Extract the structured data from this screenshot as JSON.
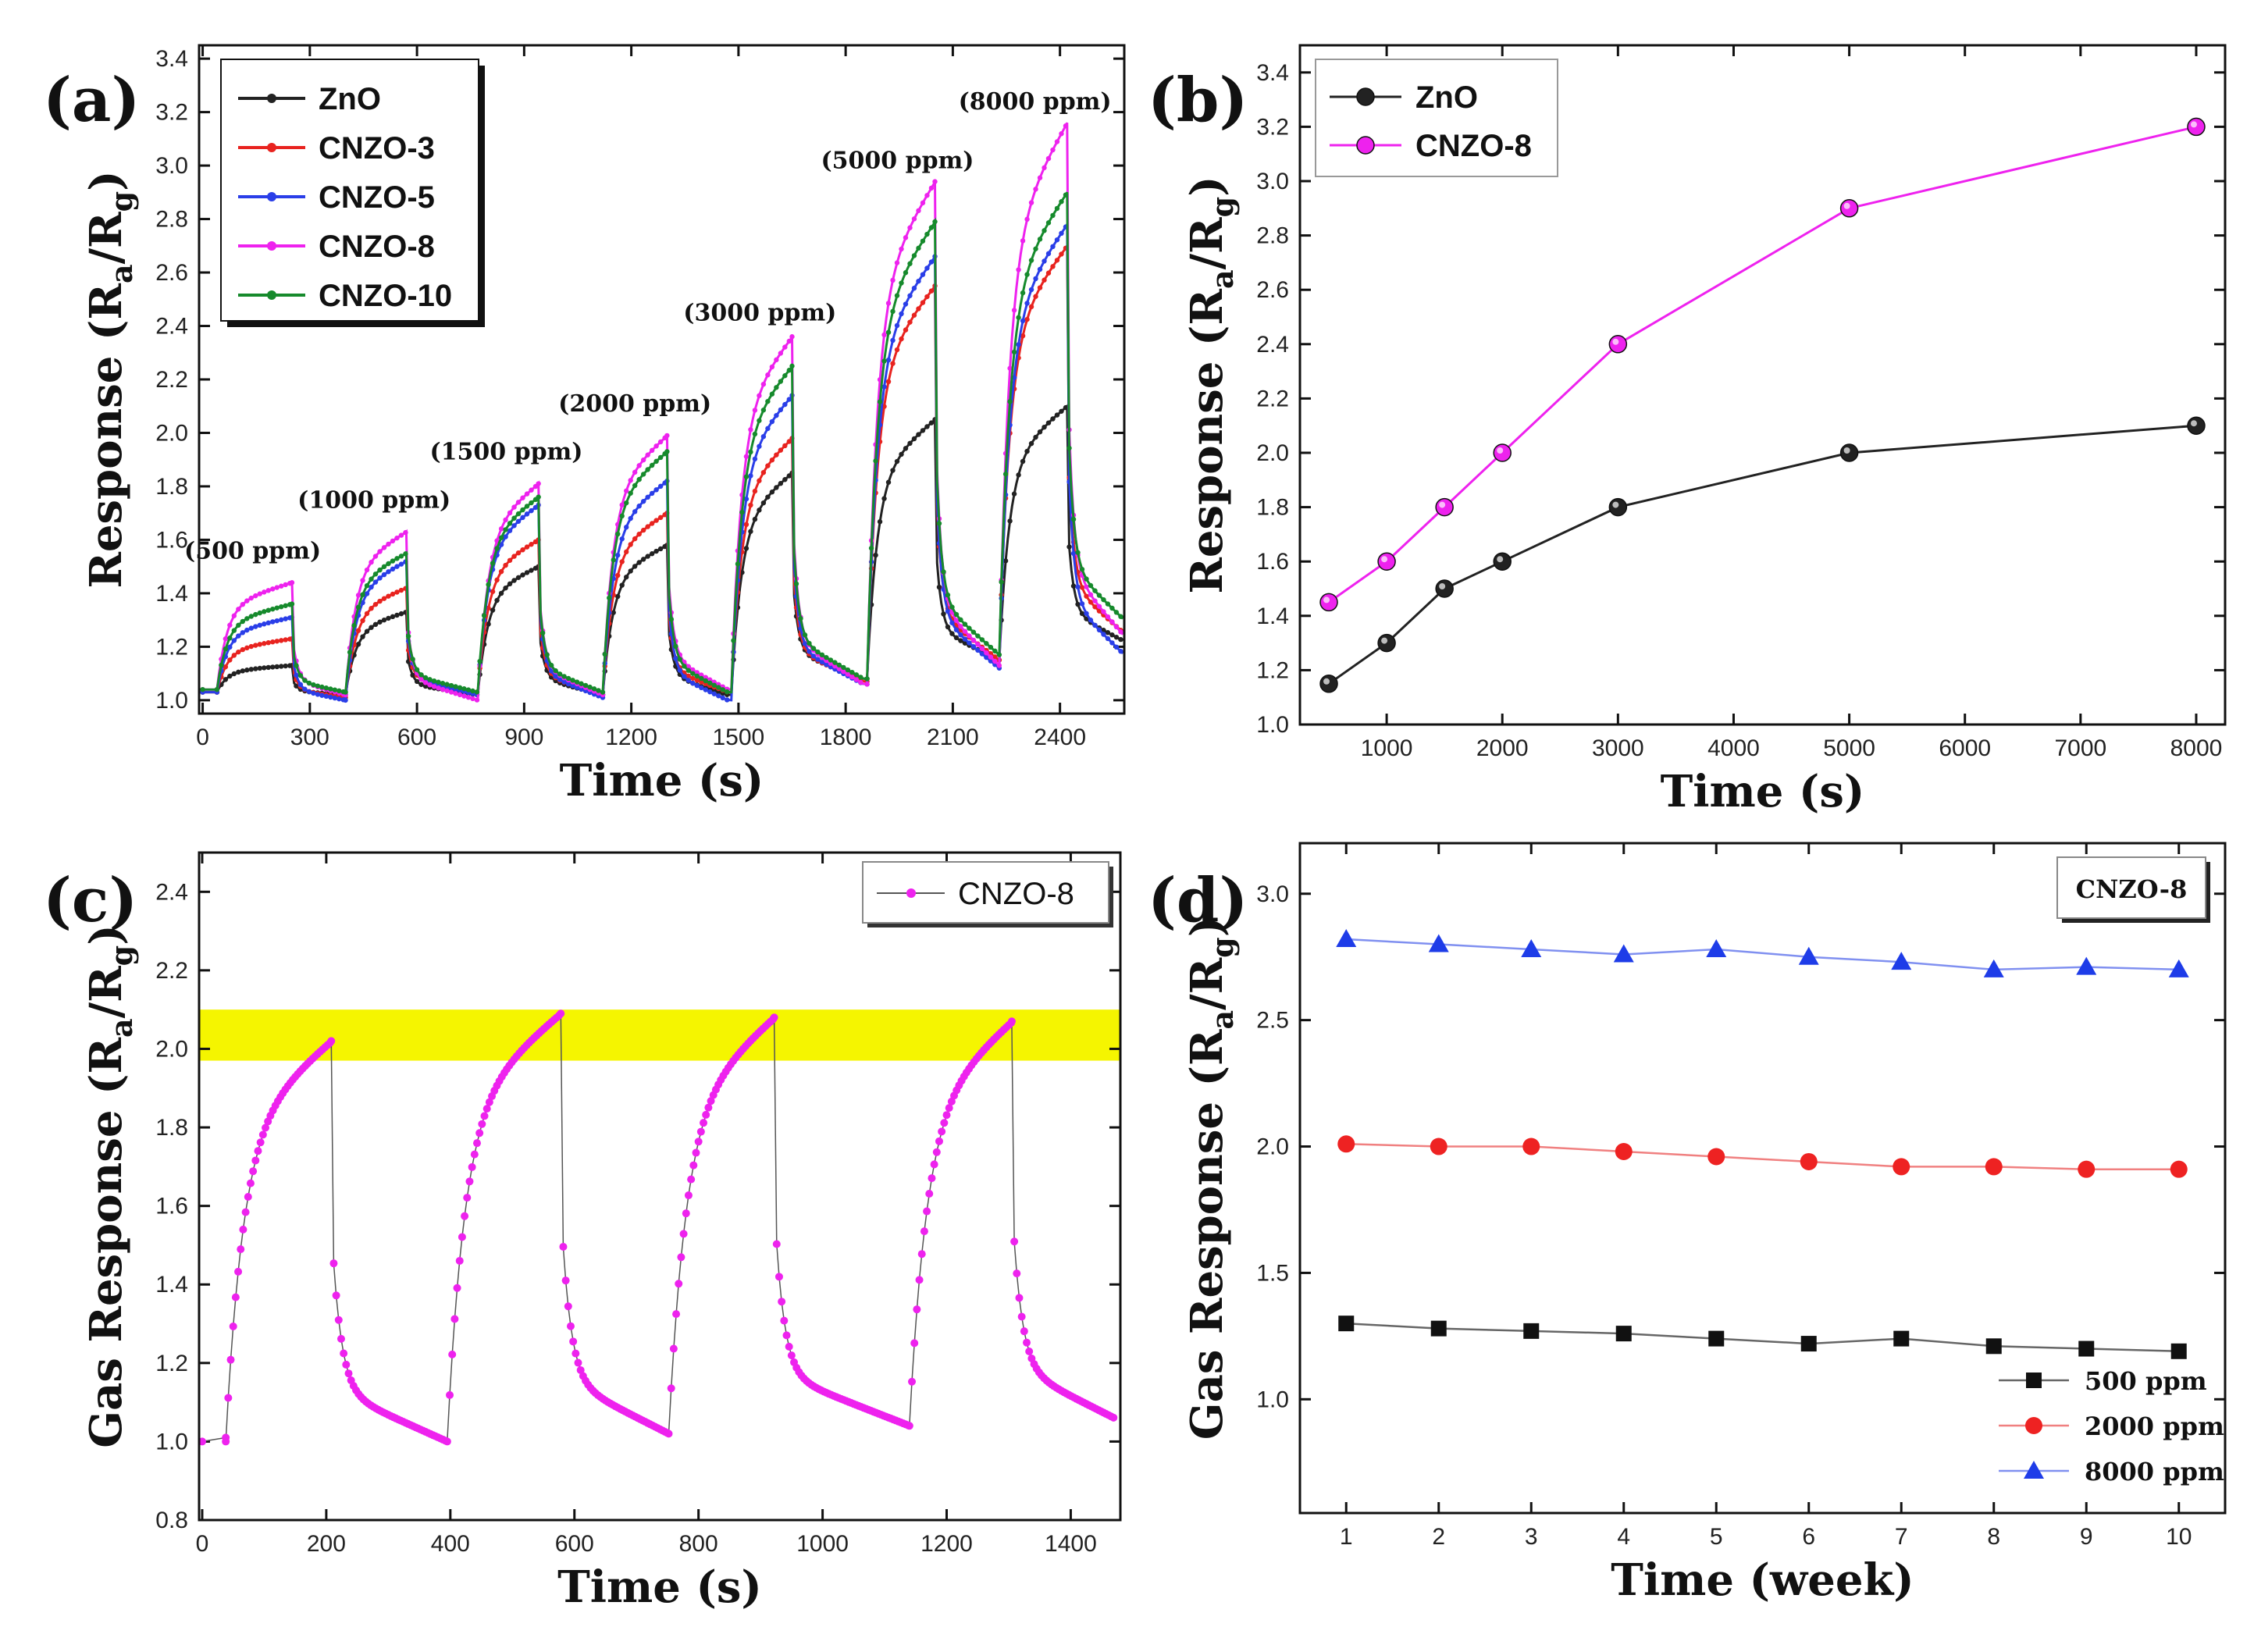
{
  "chart_data": [
    {
      "id": "a",
      "panel_label": "(a)",
      "type": "line",
      "xlabel": "Time (s)",
      "ylabel": "Response (R",
      "ylabel_sub1": "a",
      "ylabel_mid": "/R",
      "ylabel_sub2": "g",
      "ylabel_end": ")",
      "xlim": [
        -10,
        2580
      ],
      "ylim": [
        0.95,
        3.45
      ],
      "xticks": [
        "0",
        "300",
        "600",
        "900",
        "1200",
        "1500",
        "1800",
        "2100",
        "2400"
      ],
      "xtick_values": [
        0,
        300,
        600,
        900,
        1200,
        1500,
        1800,
        2100,
        2400
      ],
      "yticks": [
        "1.0",
        "1.2",
        "1.4",
        "1.6",
        "1.8",
        "2.0",
        "2.2",
        "2.4",
        "2.6",
        "2.8",
        "3.0",
        "3.2",
        "3.4"
      ],
      "ytick_values": [
        1.0,
        1.2,
        1.4,
        1.6,
        1.8,
        2.0,
        2.2,
        2.4,
        2.6,
        2.8,
        3.0,
        3.2,
        3.4
      ],
      "cycles": [
        {
          "on": 40,
          "off": 250,
          "next": 400
        },
        {
          "on": 400,
          "off": 570,
          "next": 770
        },
        {
          "on": 770,
          "off": 940,
          "next": 1120
        },
        {
          "on": 1120,
          "off": 1300,
          "next": 1470
        },
        {
          "on": 1480,
          "off": 1650,
          "next": 1850
        },
        {
          "on": 1860,
          "off": 2050,
          "next": 2230
        },
        {
          "on": 2230,
          "off": 2420,
          "next": 2580
        }
      ],
      "annotations": [
        {
          "text": "(500 ppm)",
          "x": 140,
          "y": 1.53
        },
        {
          "text": "(1000 ppm)",
          "x": 480,
          "y": 1.72
        },
        {
          "text": "(1500 ppm)",
          "x": 850,
          "y": 1.9
        },
        {
          "text": "(2000 ppm)",
          "x": 1210,
          "y": 2.08
        },
        {
          "text": "(3000 ppm)",
          "x": 1560,
          "y": 2.42
        },
        {
          "text": "(5000 ppm)",
          "x": 1945,
          "y": 2.99
        },
        {
          "text": "(8000 ppm)",
          "x": 2330,
          "y": 3.21
        }
      ],
      "series": [
        {
          "name": "ZnO",
          "color": "#222222",
          "baseline": 1.03,
          "peaks": [
            1.13,
            1.33,
            1.5,
            1.58,
            1.85,
            2.05,
            2.1
          ],
          "ends": [
            1.02,
            1.02,
            1.02,
            1.02,
            1.08,
            1.15,
            1.22
          ]
        },
        {
          "name": "CNZO-3",
          "color": "#e8231f",
          "baseline": 1.03,
          "peaks": [
            1.23,
            1.42,
            1.6,
            1.7,
            1.98,
            2.55,
            2.7
          ],
          "ends": [
            1.01,
            1.03,
            1.02,
            1.03,
            1.07,
            1.15,
            1.25
          ]
        },
        {
          "name": "CNZO-5",
          "color": "#2a3ee8",
          "baseline": 1.03,
          "peaks": [
            1.31,
            1.52,
            1.73,
            1.82,
            2.14,
            2.66,
            2.78
          ],
          "ends": [
            1.0,
            1.02,
            1.01,
            1.0,
            1.06,
            1.12,
            1.17
          ]
        },
        {
          "name": "CNZO-8",
          "color": "#ee22ee",
          "baseline": 1.04,
          "peaks": [
            1.44,
            1.63,
            1.81,
            1.99,
            2.36,
            2.94,
            3.16
          ],
          "ends": [
            1.02,
            1.0,
            1.02,
            1.04,
            1.06,
            1.13,
            1.24
          ]
        },
        {
          "name": "CNZO-10",
          "color": "#168a2c",
          "baseline": 1.04,
          "peaks": [
            1.36,
            1.55,
            1.76,
            1.93,
            2.25,
            2.79,
            2.9
          ],
          "ends": [
            1.03,
            1.03,
            1.03,
            1.03,
            1.08,
            1.17,
            1.3
          ]
        }
      ]
    },
    {
      "id": "b",
      "panel_label": "(b)",
      "type": "line",
      "xlabel": "Time (s)",
      "ylabel": "Response (R",
      "ylabel_sub1": "a",
      "ylabel_mid": "/R",
      "ylabel_sub2": "g",
      "ylabel_end": ")",
      "xlim": [
        250,
        8250
      ],
      "ylim": [
        1.0,
        3.5
      ],
      "xticks": [
        "1000",
        "2000",
        "3000",
        "4000",
        "5000",
        "6000",
        "7000",
        "8000"
      ],
      "xtick_values": [
        1000,
        2000,
        3000,
        4000,
        5000,
        6000,
        7000,
        8000
      ],
      "yticks": [
        "1.0",
        "1.2",
        "1.4",
        "1.6",
        "1.8",
        "2.0",
        "2.2",
        "2.4",
        "2.6",
        "2.8",
        "3.0",
        "3.2",
        "3.4"
      ],
      "ytick_values": [
        1.0,
        1.2,
        1.4,
        1.6,
        1.8,
        2.0,
        2.2,
        2.4,
        2.6,
        2.8,
        3.0,
        3.2,
        3.4
      ],
      "x": [
        500,
        1000,
        1500,
        2000,
        3000,
        5000,
        8000
      ],
      "series": [
        {
          "name": "ZnO",
          "color": "#222222",
          "values": [
            1.15,
            1.3,
            1.5,
            1.6,
            1.8,
            2.0,
            2.1
          ]
        },
        {
          "name": "CNZO-8",
          "color": "#ee22ee",
          "values": [
            1.45,
            1.6,
            1.8,
            2.0,
            2.4,
            2.9,
            3.2
          ]
        }
      ]
    },
    {
      "id": "c",
      "panel_label": "(c)",
      "type": "line",
      "xlabel": "Time (s)",
      "ylabel": "Gas Response (R",
      "ylabel_sub1": "a",
      "ylabel_mid": "/R",
      "ylabel_sub2": "g",
      "ylabel_end": ")",
      "xlim": [
        -5,
        1480
      ],
      "ylim": [
        0.8,
        2.5
      ],
      "xticks": [
        "0",
        "200",
        "400",
        "600",
        "800",
        "1000",
        "1200",
        "1400"
      ],
      "xtick_values": [
        0,
        200,
        400,
        600,
        800,
        1000,
        1200,
        1400
      ],
      "yticks": [
        "0.8",
        "1.0",
        "1.2",
        "1.4",
        "1.6",
        "1.8",
        "2.0",
        "2.2",
        "2.4"
      ],
      "ytick_values": [
        0.8,
        1.0,
        1.2,
        1.4,
        1.6,
        1.8,
        2.0,
        2.2,
        2.4
      ],
      "highlight_band": [
        1.97,
        2.1
      ],
      "highlight_color": "#f5f500",
      "cycles": [
        {
          "on": 38,
          "off": 208,
          "next": 395,
          "peak": 2.02,
          "end": 1.0
        },
        {
          "on": 395,
          "off": 578,
          "next": 752,
          "peak": 2.09,
          "end": 1.02
        },
        {
          "on": 752,
          "off": 922,
          "next": 1140,
          "peak": 2.08,
          "end": 1.04
        },
        {
          "on": 1140,
          "off": 1305,
          "next": 1470,
          "peak": 2.07,
          "end": 1.06
        }
      ],
      "series": [
        {
          "name": "CNZO-8",
          "color": "#ee22ee"
        }
      ]
    },
    {
      "id": "d",
      "panel_label": "(d)",
      "type": "line",
      "title_box": "CNZO-8",
      "xlabel": "Time (week)",
      "ylabel": "Gas Response (R",
      "ylabel_sub1": "a",
      "ylabel_mid": "/R",
      "ylabel_sub2": "g",
      "ylabel_end": ")",
      "xlim": [
        0.5,
        10.5
      ],
      "ylim": [
        0.55,
        3.2
      ],
      "xticks": [
        "1",
        "2",
        "3",
        "4",
        "5",
        "6",
        "7",
        "8",
        "9",
        "10"
      ],
      "xtick_values": [
        1,
        2,
        3,
        4,
        5,
        6,
        7,
        8,
        9,
        10
      ],
      "yticks": [
        "1.0",
        "1.5",
        "2.0",
        "2.5",
        "3.0"
      ],
      "ytick_values": [
        1.0,
        1.5,
        2.0,
        2.5,
        3.0
      ],
      "x": [
        1,
        2,
        3,
        4,
        5,
        6,
        7,
        8,
        9,
        10
      ],
      "series": [
        {
          "name": "500 ppm",
          "color": "#111111",
          "marker": "square",
          "line_color": "#666666",
          "values": [
            1.3,
            1.28,
            1.27,
            1.26,
            1.24,
            1.22,
            1.24,
            1.21,
            1.2,
            1.19
          ]
        },
        {
          "name": "2000 ppm",
          "color": "#ee2222",
          "marker": "circle",
          "line_color": "#f08080",
          "values": [
            2.01,
            2.0,
            2.0,
            1.98,
            1.96,
            1.94,
            1.92,
            1.92,
            1.91,
            1.91
          ]
        },
        {
          "name": "8000 ppm",
          "color": "#1e3ce8",
          "marker": "triangle",
          "line_color": "#8090f0",
          "values": [
            2.82,
            2.8,
            2.78,
            2.76,
            2.78,
            2.75,
            2.73,
            2.7,
            2.71,
            2.7
          ]
        }
      ]
    }
  ]
}
